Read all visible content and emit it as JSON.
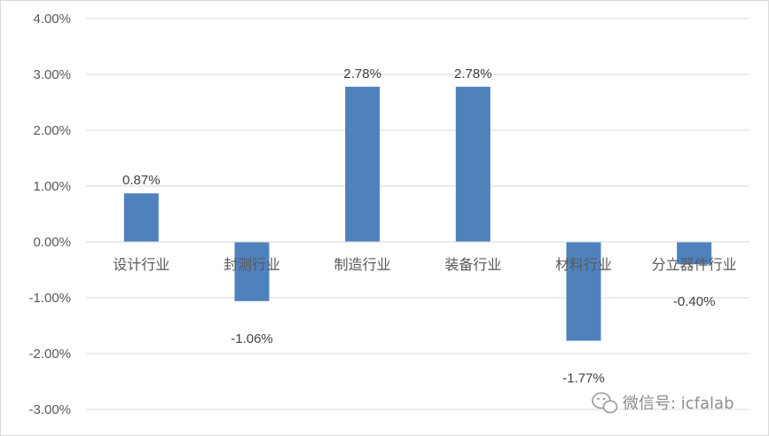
{
  "chart_data": {
    "type": "bar",
    "categories": [
      "设计行业",
      "封测行业",
      "制造行业",
      "装备行业",
      "材料行业",
      "分立器件行业"
    ],
    "values": [
      0.87,
      -1.06,
      2.78,
      2.78,
      -1.77,
      -0.4
    ],
    "data_labels": [
      "0.87%",
      "-1.06%",
      "2.78%",
      "2.78%",
      "-1.77%",
      "-0.40%"
    ],
    "y_ticks": [
      4,
      3,
      2,
      1,
      0,
      -1,
      -2,
      -3
    ],
    "y_tick_labels": [
      "4.00%",
      "3.00%",
      "2.00%",
      "1.00%",
      "0.00%",
      "-1.00%",
      "-2.00%",
      "-3.00%"
    ],
    "ylim": [
      -3,
      4
    ],
    "grid": true,
    "bar_color": "#4f81bd",
    "grid_color": "#d9d9d9"
  },
  "watermark": {
    "text": "微信号: icfalab",
    "icon": "wechat-icon"
  }
}
